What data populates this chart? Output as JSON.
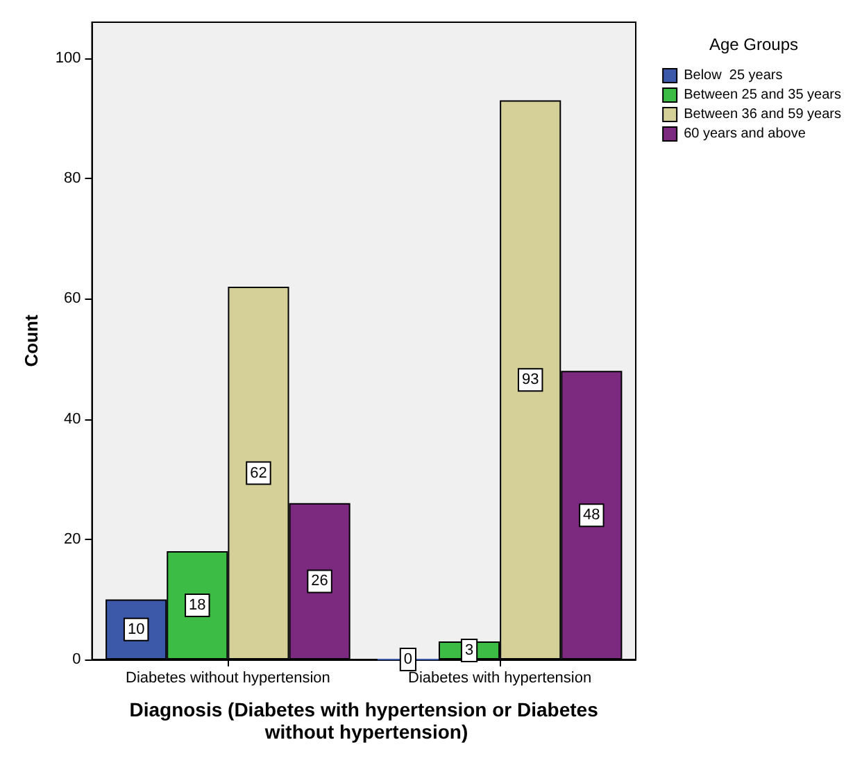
{
  "chart_data": {
    "type": "bar",
    "xlabel": "Diagnosis (Diabetes with hypertension or Diabetes without hypertension)",
    "ylabel": "Count",
    "legend_title": "Age Groups",
    "categories": [
      "Diabetes without hypertension",
      "Diabetes with hypertension"
    ],
    "series": [
      {
        "name": "Below  25 years",
        "color": "#3c58a8",
        "values": [
          10,
          0
        ]
      },
      {
        "name": "Between 25 and 35 years",
        "color": "#3cbb45",
        "values": [
          18,
          3
        ]
      },
      {
        "name": "Between 36 and 59 years",
        "color": "#d5cf98",
        "values": [
          62,
          93
        ]
      },
      {
        "name": "60 years and above",
        "color": "#7b2a7f",
        "values": [
          26,
          48
        ]
      }
    ],
    "ylim": [
      0,
      106
    ],
    "yticks": [
      0,
      20,
      40,
      60,
      80,
      100
    ],
    "grid": false,
    "legend": "top right",
    "data_labels": true
  }
}
